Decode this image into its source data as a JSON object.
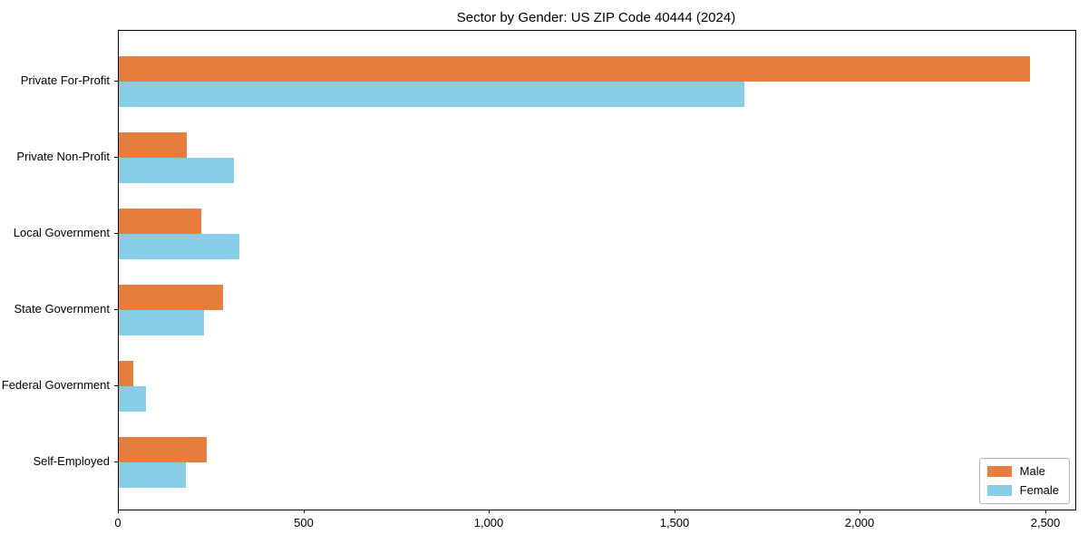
{
  "chart_data": {
    "type": "bar",
    "orientation": "horizontal",
    "title": "Sector by Gender: US ZIP Code 40444 (2024)",
    "xlabel": "",
    "ylabel": "",
    "grid": false,
    "categories": [
      "Private For-Profit",
      "Private Non-Profit",
      "Local Government",
      "State Government",
      "Federal Government",
      "Self-Employed"
    ],
    "series": [
      {
        "name": "Male",
        "color": "#e87e3d",
        "values": [
          2456,
          183,
          222,
          280,
          39,
          237
        ]
      },
      {
        "name": "Female",
        "color": "#87cdea",
        "values": [
          1686,
          310,
          325,
          230,
          73,
          181
        ]
      }
    ],
    "xlim": [
      0,
      2578
    ],
    "x_tick_values": [
      0,
      500,
      1000,
      1500,
      2000,
      2500
    ],
    "x_tick_labels": [
      "0",
      "500",
      "1,000",
      "1,500",
      "2,000",
      "2,500"
    ],
    "legend_position": "lower right"
  }
}
